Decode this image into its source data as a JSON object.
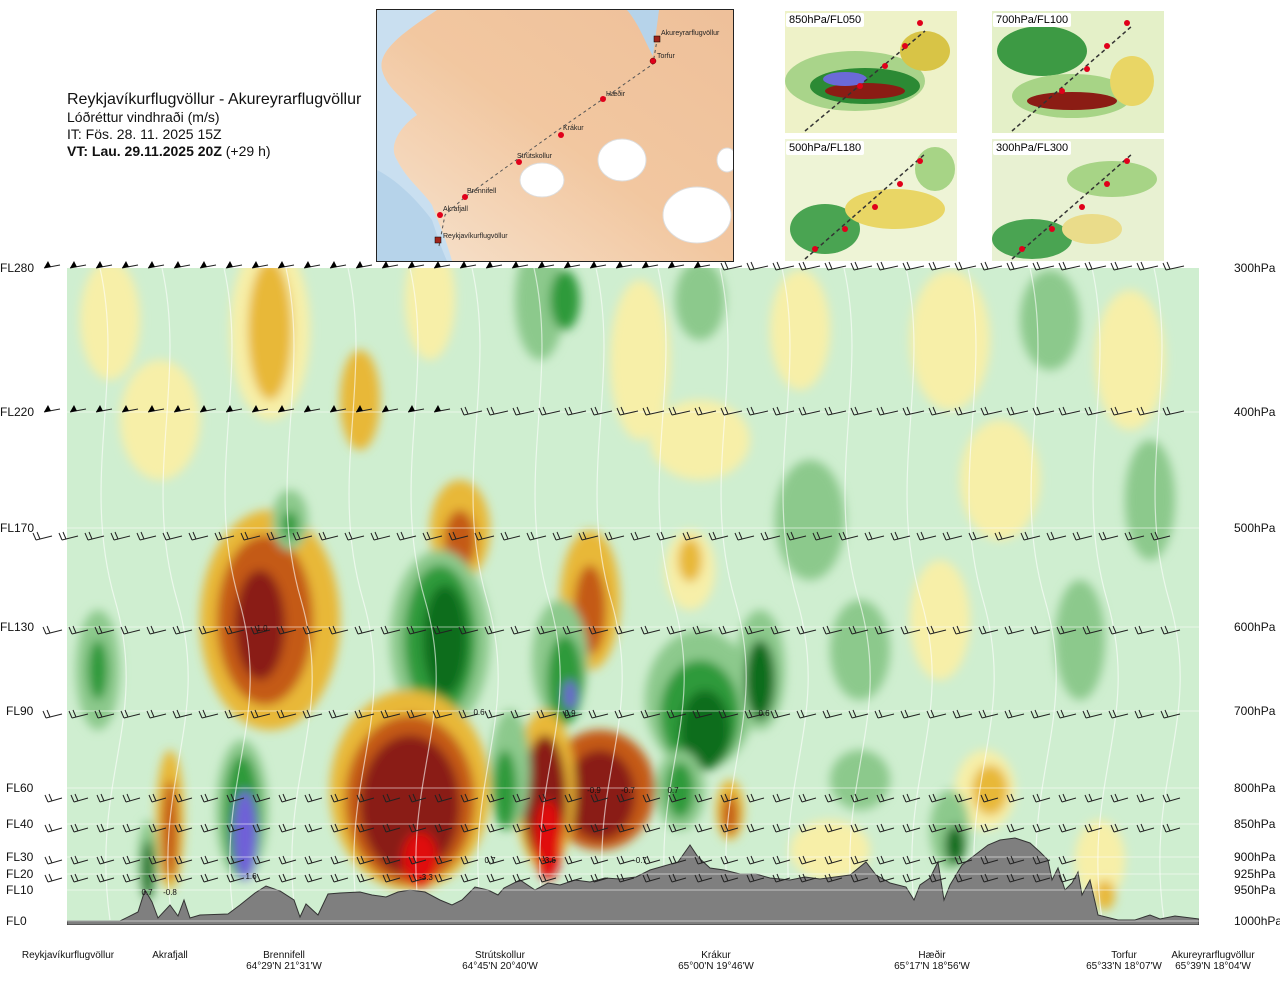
{
  "header": {
    "title": "Reykjavíkurflugvöllur - Akureyrarflugvöllur",
    "parameter": "Lóðréttur vindhraði (m/s)",
    "issue_time": "IT: Fös. 28. 11. 2025 15Z",
    "valid_time_bold": "VT: Lau. 29.11.2025 20Z",
    "valid_time_offset": "(+29 h)"
  },
  "route_map": {
    "waypoints": [
      {
        "name": "Akureyrarflugvöllur"
      },
      {
        "name": "Torfur"
      },
      {
        "name": "Hæðir"
      },
      {
        "name": "Krákur"
      },
      {
        "name": "Strútskollur"
      },
      {
        "name": "Brennifell"
      },
      {
        "name": "Akrafjall"
      },
      {
        "name": "Reykjavíkurflugvöllur"
      }
    ]
  },
  "thumbnails": [
    {
      "label": "850hPa/FL050"
    },
    {
      "label": "700hPa/FL100"
    },
    {
      "label": "500hPa/FL180"
    },
    {
      "label": "300hPa/FL300"
    }
  ],
  "chart_data": {
    "type": "heatmap",
    "title": "Reykjavíkurflugvöllur - Akureyrarflugvöllur",
    "variable": "Vertical wind speed (m/s)",
    "y_axis_left": [
      "FL280",
      "FL220",
      "FL170",
      "FL130",
      "FL90",
      "FL60",
      "FL40",
      "FL30",
      "FL20",
      "FL10",
      "FL0"
    ],
    "y_axis_right": [
      "300hPa",
      "400hPa",
      "500hPa",
      "600hPa",
      "700hPa",
      "800hPa",
      "850hPa",
      "900hPa",
      "925hPa",
      "950hPa",
      "1000hPa"
    ],
    "x_locations": [
      {
        "name": "Reykjavíkurflugvöllur",
        "coord": ""
      },
      {
        "name": "Akrafjall",
        "coord": ""
      },
      {
        "name": "Brennifell",
        "coord": "64°29'N 21°31'W"
      },
      {
        "name": "Strútskollur",
        "coord": "64°45'N 20°40'W"
      },
      {
        "name": "Krákur",
        "coord": "65°00'N 19°46'W"
      },
      {
        "name": "Hæðir",
        "coord": "65°17'N 18°56'W"
      },
      {
        "name": "Torfur",
        "coord": "65°33'N 18°07'W"
      },
      {
        "name": "Akureyrarflugvöllur",
        "coord": "65°39'N 18°04'W"
      }
    ],
    "contour_labels": [
      {
        "value": "1.0",
        "location": "Brennifell",
        "level": "FL130"
      },
      {
        "value": "0.6",
        "location": "Strútskollur",
        "level": "FL90"
      },
      {
        "value": "0.9",
        "location": "Strútskollur",
        "level": "FL90"
      },
      {
        "value": "0.6",
        "location": "Krákur",
        "level": "FL90"
      },
      {
        "value": "-0.9",
        "location": "Strútskollur",
        "level": "FL60"
      },
      {
        "value": "-0.7",
        "location": "Strútskollur",
        "level": "FL60"
      },
      {
        "value": "0.7",
        "location": "Krákur",
        "level": "FL60"
      },
      {
        "value": "0.7",
        "location": "Strútskollur",
        "level": "FL30"
      },
      {
        "value": "-3.6",
        "location": "Strútskollur",
        "level": "FL30"
      },
      {
        "value": "-0.7",
        "location": "Krákur",
        "level": "FL30"
      },
      {
        "value": "1.6",
        "location": "Brennifell",
        "level": "FL20"
      },
      {
        "value": "-3.3",
        "location": "Strútskollur",
        "level": "FL20"
      },
      {
        "value": "0.7",
        "location": "Akrafjall",
        "level": "FL10"
      },
      {
        "value": "-0.8",
        "location": "Akrafjall",
        "level": "FL10"
      }
    ],
    "colors": {
      "strong_down": "#8a1a12",
      "down": "#c45a18",
      "weak_down": "#e8b838",
      "slight_down": "#f7efa8",
      "neutral": "#cfeed0",
      "weak_up": "#8cc98c",
      "up": "#2f9a3a",
      "strong_up": "#0e6d1c",
      "very_strong_up": "#7060d8",
      "terrain": "#7f7f7f"
    }
  }
}
